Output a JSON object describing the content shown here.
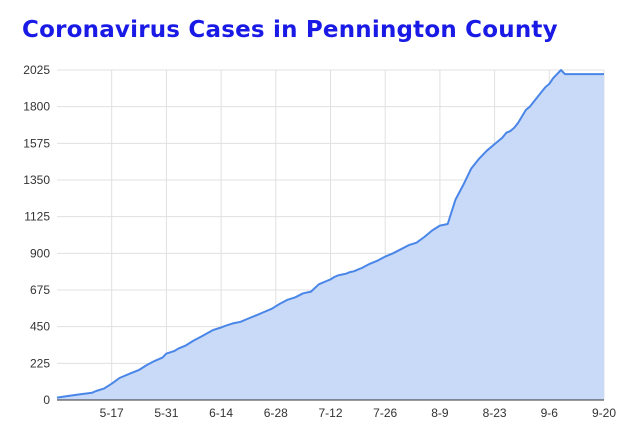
{
  "chart_data": {
    "type": "area",
    "title": "Coronavirus Cases in Pennington County",
    "xlabel": "",
    "ylabel": "",
    "ylim": [
      0,
      2025
    ],
    "y_ticks": [
      "0",
      "225",
      "450",
      "675",
      "900",
      "1125",
      "1350",
      "1575",
      "1800",
      "2025"
    ],
    "x_ticks": [
      "5-17",
      "5-31",
      "6-14",
      "6-28",
      "7-12",
      "7-26",
      "8-9",
      "8-23",
      "9-6",
      "9-20"
    ],
    "x_tick_values": [
      14,
      28,
      42,
      56,
      70,
      84,
      98,
      112,
      126,
      140
    ],
    "grid": true,
    "legend": "none",
    "colors": {
      "line": "#4a86e8",
      "fill": "#c9daf8",
      "title": "#1a1ae6",
      "grid": "#e0e0e0",
      "axis": "#333333"
    },
    "series": [
      {
        "x": [
          0,
          3,
          6,
          9,
          10,
          12,
          14,
          16,
          18,
          19,
          21,
          23,
          25,
          27,
          28,
          30,
          31,
          33,
          35,
          37,
          40,
          42,
          43,
          45,
          47,
          49,
          51,
          53,
          55,
          57,
          59,
          61,
          63,
          65,
          67,
          69,
          70,
          71,
          72,
          73,
          74,
          75,
          76,
          77,
          78,
          80,
          82,
          84,
          86,
          88,
          90,
          92,
          94,
          96,
          98,
          100,
          102,
          104,
          106,
          108,
          110,
          112,
          114,
          115,
          116,
          117,
          118,
          119,
          120,
          121,
          122,
          123,
          124,
          125,
          126,
          127,
          128,
          129,
          130,
          131,
          133,
          135,
          137,
          139,
          140
        ],
        "values": [
          15,
          25,
          35,
          45,
          55,
          70,
          100,
          135,
          155,
          165,
          185,
          215,
          240,
          260,
          285,
          300,
          315,
          335,
          365,
          390,
          430,
          445,
          455,
          470,
          480,
          500,
          520,
          540,
          560,
          590,
          615,
          630,
          655,
          665,
          710,
          730,
          740,
          755,
          765,
          770,
          775,
          785,
          790,
          800,
          810,
          835,
          855,
          880,
          900,
          925,
          950,
          965,
          1000,
          1040,
          1070,
          1080,
          1230,
          1320,
          1420,
          1480,
          1530,
          1570,
          1610,
          1640,
          1650,
          1670,
          1700,
          1740,
          1780,
          1800,
          1830,
          1860,
          1890,
          1920,
          1940,
          1975,
          2000,
          2025,
          2000,
          2000,
          2000,
          2000,
          2000,
          2000,
          2000
        ]
      }
    ]
  }
}
